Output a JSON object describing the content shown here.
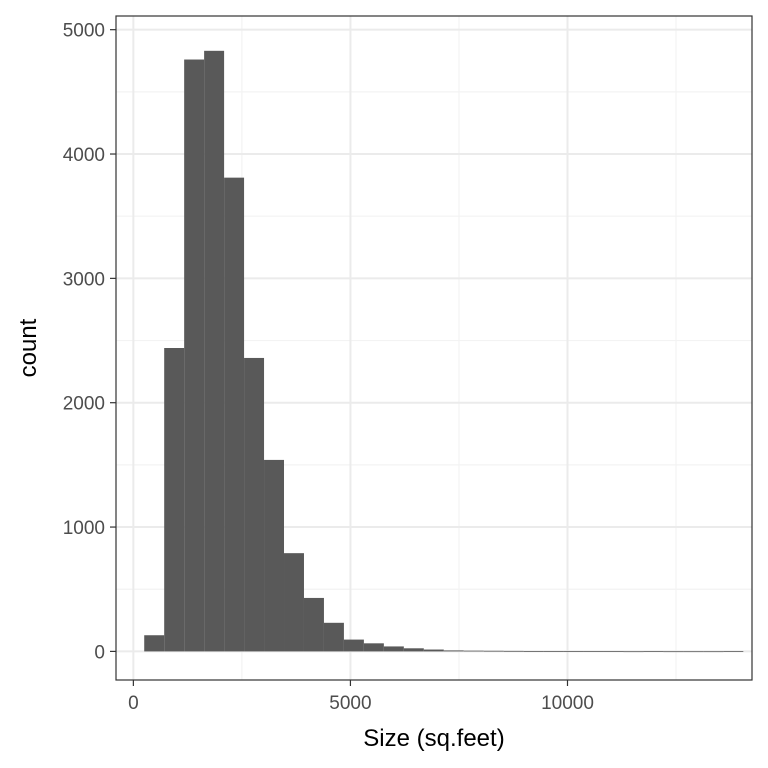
{
  "chart_data": {
    "type": "bar",
    "subtype": "histogram",
    "xlabel": "Size (sq.feet)",
    "ylabel": "count",
    "xlim": [
      -400,
      14250
    ],
    "ylim": [
      -230,
      5110
    ],
    "x_ticks": [
      0,
      5000,
      10000
    ],
    "x_tick_labels": [
      "0",
      "5000",
      "10000"
    ],
    "x_minor_ticks": [
      2500,
      7500,
      12500
    ],
    "y_ticks": [
      0,
      1000,
      2000,
      3000,
      4000,
      5000
    ],
    "y_tick_labels": [
      "0",
      "1000",
      "2000",
      "3000",
      "4000",
      "5000"
    ],
    "y_minor_ticks": [
      500,
      1500,
      2500,
      3500,
      4500
    ],
    "bin_width": 460,
    "bin_starts": [
      250,
      710,
      1170,
      1630,
      2090,
      2550,
      3010,
      3470,
      3930,
      4390,
      4850,
      5310,
      5770,
      6230,
      6690,
      7150,
      7610,
      8070,
      8530,
      8990,
      9450,
      9910,
      10370,
      10830,
      11290,
      11750,
      12210,
      12670,
      13130,
      13590
    ],
    "values": [
      130,
      2440,
      4760,
      4830,
      3810,
      2360,
      1540,
      790,
      430,
      230,
      95,
      65,
      40,
      25,
      15,
      8,
      6,
      5,
      4,
      3,
      3,
      3,
      2,
      2,
      1,
      2,
      1,
      1,
      1,
      2
    ],
    "grid": true,
    "legend": "none",
    "colors": {
      "bar": "#595959",
      "grid_major": "#ebebeb",
      "grid_minor": "#f3f3f3",
      "panel_border": "#333333",
      "tick": "#333333"
    }
  }
}
